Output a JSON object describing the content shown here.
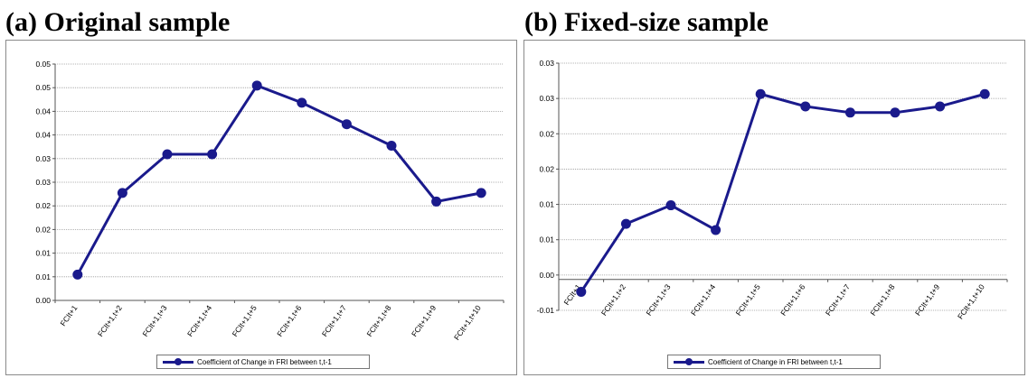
{
  "panels": [
    {
      "title": "(a) Original sample"
    },
    {
      "title": "(b) Fixed-size sample"
    }
  ],
  "chart_data": [
    {
      "type": "line",
      "title": "(a) Original sample",
      "categories": [
        "FCIt+1",
        "FCIt+1,t+2",
        "FCIt+1,t+3",
        "FCIt+1,t+4",
        "FCIt+1,t+5",
        "FCIt+1,t+6",
        "FCIt+1,t+7",
        "FCIt+1,t+8",
        "FCIt+1,t+9",
        "FCIt+1,t+10"
      ],
      "series": [
        {
          "name": "Coefficient of Change in FRI between t,t-1",
          "values": [
            0.006,
            0.025,
            0.034,
            0.034,
            0.05,
            0.046,
            0.041,
            0.036,
            0.023,
            0.025
          ]
        }
      ],
      "ytick_labels": [
        "0.00",
        "0.01",
        "0.01",
        "0.02",
        "0.02",
        "0.03",
        "0.03",
        "0.04",
        "0.04",
        "0.05",
        "0.05"
      ],
      "ylim": [
        0,
        0.055
      ],
      "grid": true,
      "legend_position": "bottom",
      "color": "#1a1a8c"
    },
    {
      "type": "line",
      "title": "(b) Fixed-size sample",
      "categories": [
        "FCIt+1",
        "FCIt+1,t+2",
        "FCIt+1,t+3",
        "FCIt+1,t+4",
        "FCIt+1,t+5",
        "FCIt+1,t+6",
        "FCIt+1,t+7",
        "FCIt+1,t+8",
        "FCIt+1,t+9",
        "FCIt+1,t+10"
      ],
      "series": [
        {
          "name": "Coefficient of Change in FRI between t,t-1",
          "values": [
            -0.002,
            0.009,
            0.012,
            0.008,
            0.03,
            0.028,
            0.027,
            0.027,
            0.028,
            0.03
          ]
        }
      ],
      "ytick_labels": [
        "-0.01",
        "0.00",
        "0.01",
        "0.01",
        "0.02",
        "0.02",
        "0.03",
        "0.03"
      ],
      "ylim": [
        -0.005,
        0.035
      ],
      "grid": true,
      "legend_position": "bottom",
      "color": "#1a1a8c"
    }
  ]
}
